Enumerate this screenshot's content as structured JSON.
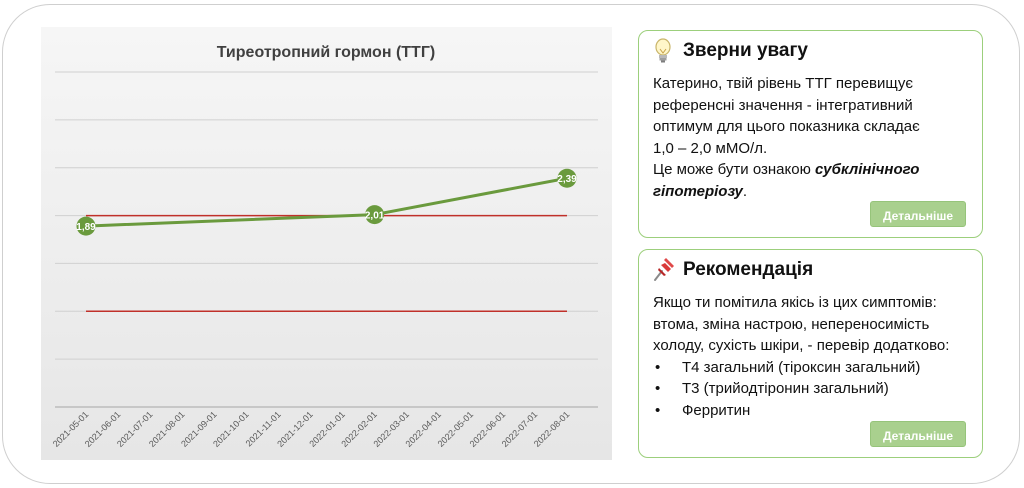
{
  "chart_data": {
    "type": "line",
    "title": "Тиреотропний гормон (ТТГ)",
    "x": [
      "2021-05-01",
      "2021-06-01",
      "2021-07-01",
      "2021-08-01",
      "2021-09-01",
      "2021-10-01",
      "2021-11-01",
      "2021-12-01",
      "2022-01-01",
      "2022-02-01",
      "2022-03-01",
      "2022-04-01",
      "2022-05-01",
      "2022-06-01",
      "2022-07-01",
      "2022-08-01"
    ],
    "series": [
      {
        "values": [
          1.89,
          null,
          null,
          null,
          null,
          null,
          null,
          null,
          null,
          2.01,
          null,
          null,
          null,
          null,
          null,
          2.39
        ],
        "color": "#6a9a3d"
      }
    ],
    "reference_lines": [
      {
        "value": 2.0,
        "color": "#c0302a"
      },
      {
        "value": 1.0,
        "color": "#c0302a"
      }
    ],
    "point_labels": [
      {
        "index": 0,
        "text": "1,89"
      },
      {
        "index": 9,
        "text": "2,01"
      },
      {
        "index": 15,
        "text": "2,39"
      }
    ],
    "ylim": [
      0,
      3.5
    ],
    "grid": true,
    "y_tick_labels_shown": false
  },
  "cards": {
    "attention": {
      "icon": "lightbulb-icon",
      "title": "Зверни увагу",
      "text_lines": [
        "Катерино, твій рівень ТТГ перевищує",
        "референсні значення - інтегративний",
        "оптимум для цього показника складає",
        "1,0 – 2,0 мМО/л."
      ],
      "note_prefix": "Це може бути ознакою ",
      "note_emphasis": "субклінічного гіпотеріозу",
      "note_suffix": ".",
      "button": "Детальніше"
    },
    "recommendation": {
      "icon": "pushpin-icon",
      "title": "Рекомендація",
      "text_lines": [
        "Якщо ти помітила якісь із цих симптомів:",
        "втома, зміна настрою, непереносимість",
        "холоду, сухість шкіри, - перевір додатково:"
      ],
      "items": [
        "Т4 загальний (тіроксин загальний)",
        "Т3 (трийодтіронин загальний)",
        "Ферритин"
      ],
      "button": "Детальніше"
    }
  },
  "colors": {
    "accent_green": "#a9d08e",
    "card_border": "#9ccf7c",
    "line_green": "#6a9a3d",
    "reference_red": "#c0302a"
  }
}
